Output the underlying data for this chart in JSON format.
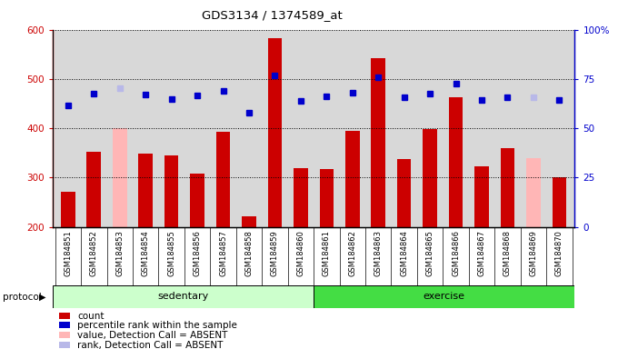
{
  "title": "GDS3134 / 1374589_at",
  "samples": [
    "GSM184851",
    "GSM184852",
    "GSM184853",
    "GSM184854",
    "GSM184855",
    "GSM184856",
    "GSM184857",
    "GSM184858",
    "GSM184859",
    "GSM184860",
    "GSM184861",
    "GSM184862",
    "GSM184863",
    "GSM184864",
    "GSM184865",
    "GSM184866",
    "GSM184867",
    "GSM184868",
    "GSM184869",
    "GSM184870"
  ],
  "count_values": [
    272,
    352,
    400,
    348,
    345,
    308,
    392,
    222,
    582,
    320,
    318,
    395,
    542,
    337,
    398,
    462,
    322,
    360,
    340,
    300
  ],
  "absent_count": [
    null,
    null,
    400,
    null,
    null,
    null,
    null,
    null,
    null,
    null,
    null,
    null,
    null,
    null,
    null,
    null,
    null,
    null,
    340,
    null
  ],
  "percentile_values": [
    447,
    470,
    482,
    468,
    460,
    466,
    476,
    432,
    508,
    455,
    464,
    473,
    503,
    463,
    471,
    490,
    457,
    463,
    463,
    458
  ],
  "absent_percentile": [
    null,
    null,
    482,
    null,
    null,
    null,
    null,
    null,
    null,
    null,
    null,
    null,
    null,
    null,
    null,
    null,
    null,
    null,
    463,
    null
  ],
  "sedentary_count": 10,
  "exercise_count": 10,
  "ylim_left": [
    200,
    600
  ],
  "ylim_right": [
    0,
    100
  ],
  "yticks_left": [
    200,
    300,
    400,
    500,
    600
  ],
  "yticks_right": [
    0,
    25,
    50,
    75,
    100
  ],
  "bar_color": "#cc0000",
  "absent_bar_color": "#ffb6b6",
  "dot_color": "#0000cc",
  "absent_dot_color": "#b8b8e8",
  "sedentary_color": "#ccffcc",
  "exercise_color": "#44dd44",
  "bg_color": "#d8d8d8",
  "left_label_color": "#cc0000",
  "right_label_color": "#0000cc",
  "legend_items": [
    {
      "label": "count",
      "color": "#cc0000"
    },
    {
      "label": "percentile rank within the sample",
      "color": "#0000cc"
    },
    {
      "label": "value, Detection Call = ABSENT",
      "color": "#ffb6b6"
    },
    {
      "label": "rank, Detection Call = ABSENT",
      "color": "#b8b8e8"
    }
  ]
}
